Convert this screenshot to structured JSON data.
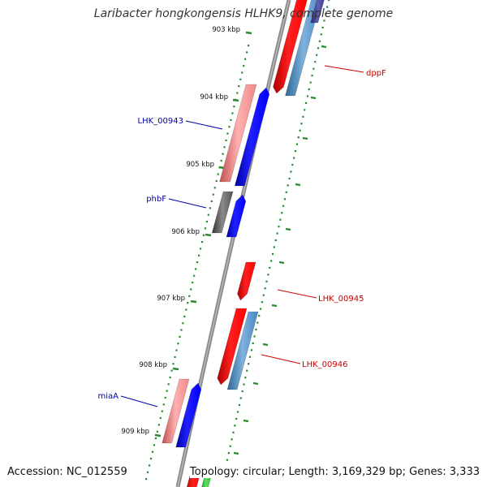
{
  "title": "Laribacter hongkongensis HLHK9, complete genome",
  "footer": {
    "accession": "Accession: NC_012559",
    "summary": "Topology: circular; Length: 3,169,329 bp; Genes: 3,333"
  },
  "ticks": [
    "903 kbp",
    "904 kbp",
    "905 kbp",
    "906 kbp",
    "907 kbp",
    "908 kbp",
    "909 kbp"
  ],
  "gene_labels": {
    "dppF": "dppF",
    "LHK_00943": "LHK_00943",
    "phbF": "phbF",
    "LHK_00945": "LHK_00945",
    "LHK_00946": "LHK_00946",
    "miaA": "miaA"
  },
  "colors": {
    "backbone": "#8a8a8a",
    "tick": "#2a8a2a",
    "forward_cds": "#ff0000",
    "forward_gene": "#4a86c0",
    "reverse_cds": "#f08888",
    "reverse_gene": "#0000ff",
    "other": "#666666",
    "forward_label": "#cc0000",
    "reverse_label": "#0000aa"
  }
}
